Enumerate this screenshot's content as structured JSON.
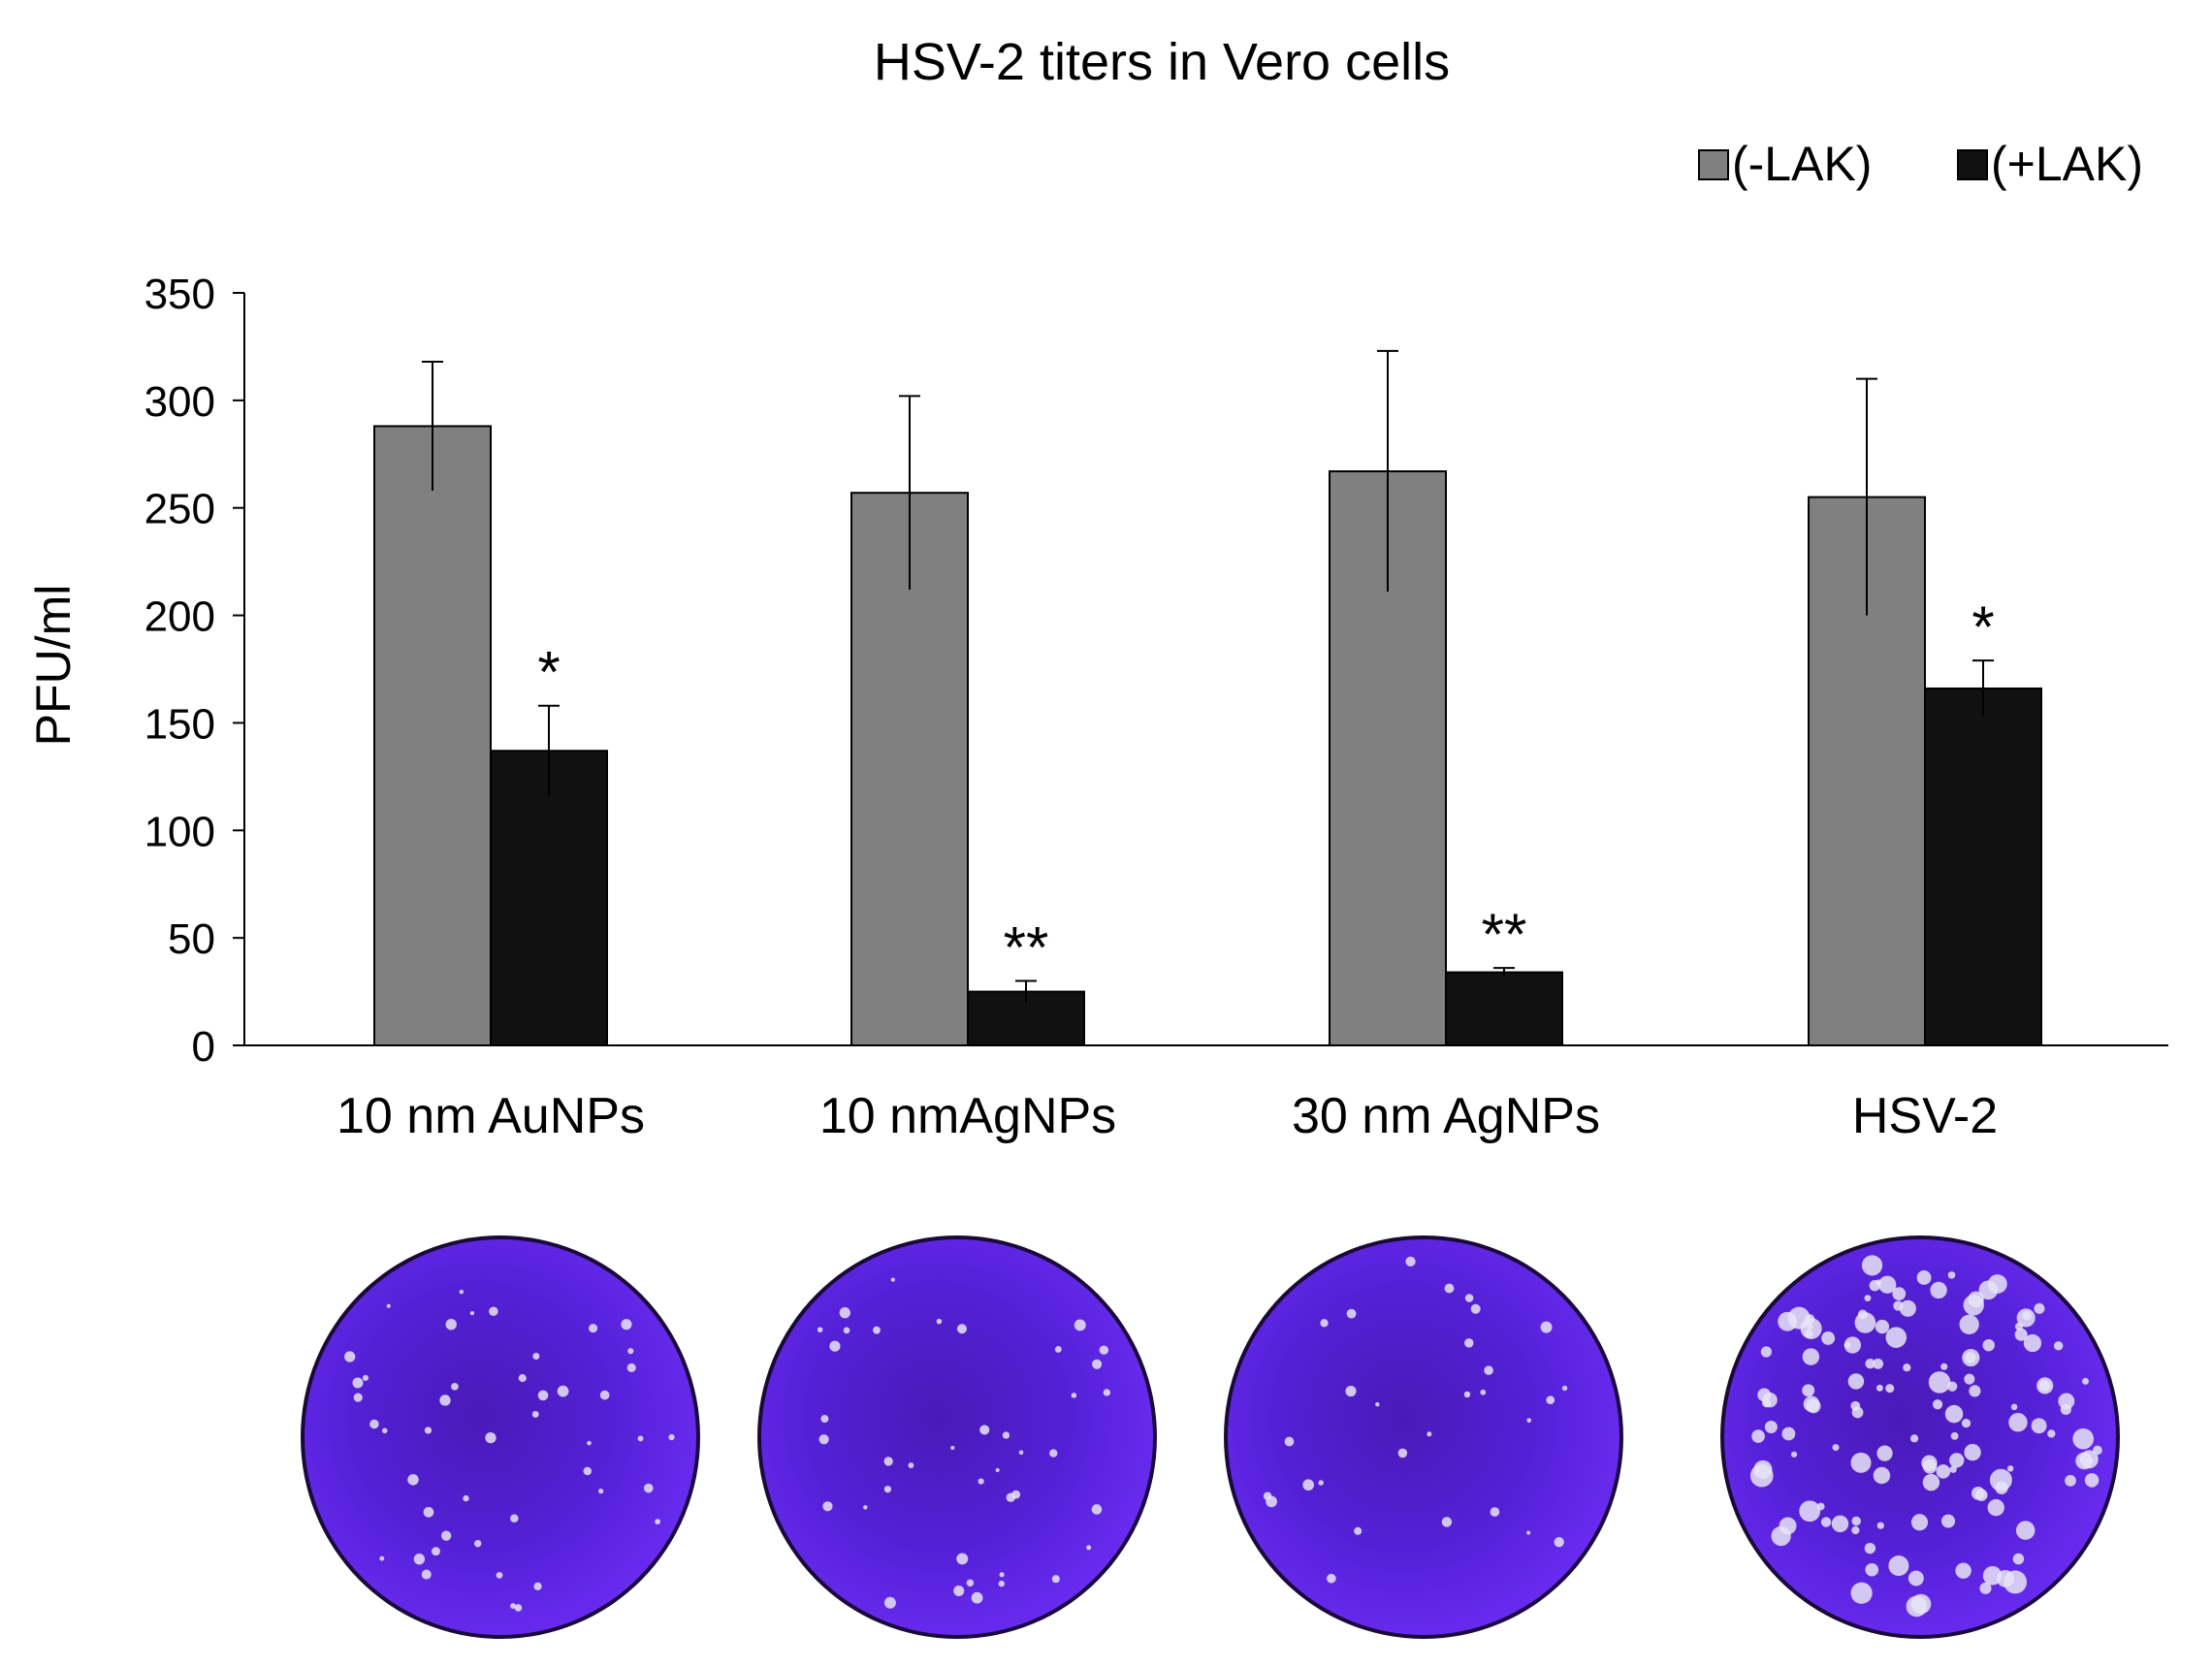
{
  "chart_data": {
    "type": "bar",
    "title": "HSV-2 titers in Vero cells",
    "xlabel": "",
    "ylabel": "PFU/ml",
    "ylim": [
      0,
      350
    ],
    "yticks": [
      0,
      50,
      100,
      150,
      200,
      250,
      300,
      350
    ],
    "categories": [
      "10 nm AuNPs",
      "10 nmAgNPs",
      "30 nm AgNPs",
      "HSV-2"
    ],
    "series": [
      {
        "name": "(-LAK)",
        "color": "#808080",
        "values": [
          288,
          257,
          267,
          255
        ],
        "errors": [
          30,
          45,
          56,
          55
        ],
        "annotations": [
          "",
          "",
          "",
          ""
        ]
      },
      {
        "name": "(+LAK)",
        "color": "#111111",
        "values": [
          137,
          25,
          34,
          166
        ],
        "errors": [
          21,
          5,
          2,
          13
        ],
        "annotations": [
          "*",
          "**",
          "**",
          "*"
        ]
      }
    ],
    "legend_position": "top-right",
    "grid": false
  },
  "plates": [
    {
      "name": "plate-10nm-aunps",
      "color": "#5a1ee0",
      "plaque_level": 0.25
    },
    {
      "name": "plate-10nm-agnps",
      "color": "#5a1ee0",
      "plaque_level": 0.2
    },
    {
      "name": "plate-30nm-agnps",
      "color": "#5a1ee0",
      "plaque_level": 0.1
    },
    {
      "name": "plate-hsv-2",
      "color": "#5a1ee0",
      "plaque_level": 1.0
    }
  ]
}
